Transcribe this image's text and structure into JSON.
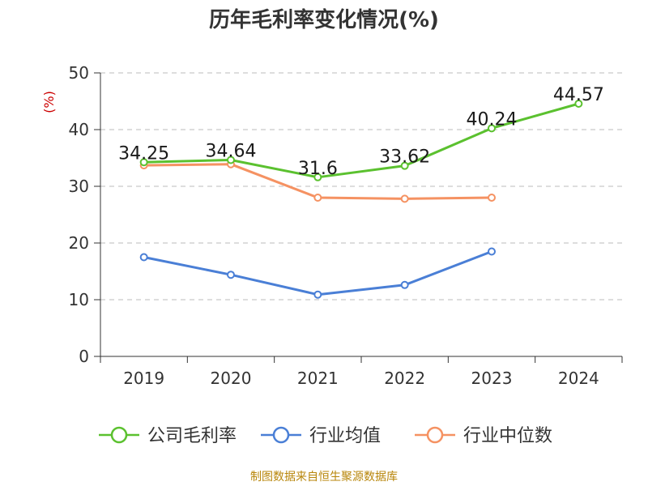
{
  "title": "历年毛利率变化情况(%)",
  "source": "制图数据来自恒生聚源数据库",
  "colors": {
    "company": "#5bc12f",
    "industry_avg": "#4a7fd6",
    "industry_median": "#f59262",
    "grid": "#bbbbbb",
    "axis": "#333333",
    "unit_label": "#cc0000",
    "source": "#b8860b"
  },
  "chart_data": {
    "type": "line",
    "title": "历年毛利率变化情况(%)",
    "ylabel": "(%)",
    "xlabel": "",
    "categories": [
      "2019",
      "2020",
      "2021",
      "2022",
      "2023",
      "2024"
    ],
    "ylim": [
      0,
      50
    ],
    "yticks": [
      0,
      10,
      20,
      30,
      40,
      50
    ],
    "grid": "horizontal dashed",
    "legend_position": "bottom",
    "series": [
      {
        "key": "company",
        "name": "公司毛利率",
        "values": [
          34.25,
          34.64,
          31.6,
          33.62,
          40.24,
          44.57
        ],
        "labels": [
          "34.25",
          "34.64",
          "31.6",
          "33.62",
          "40.24",
          "44.57"
        ]
      },
      {
        "key": "industry_avg",
        "name": "行业均值",
        "values": [
          17.5,
          14.4,
          10.9,
          12.6,
          18.5,
          null
        ]
      },
      {
        "key": "industry_median",
        "name": "行业中位数",
        "values": [
          33.7,
          33.9,
          28.0,
          27.8,
          28.0,
          null
        ]
      }
    ]
  }
}
